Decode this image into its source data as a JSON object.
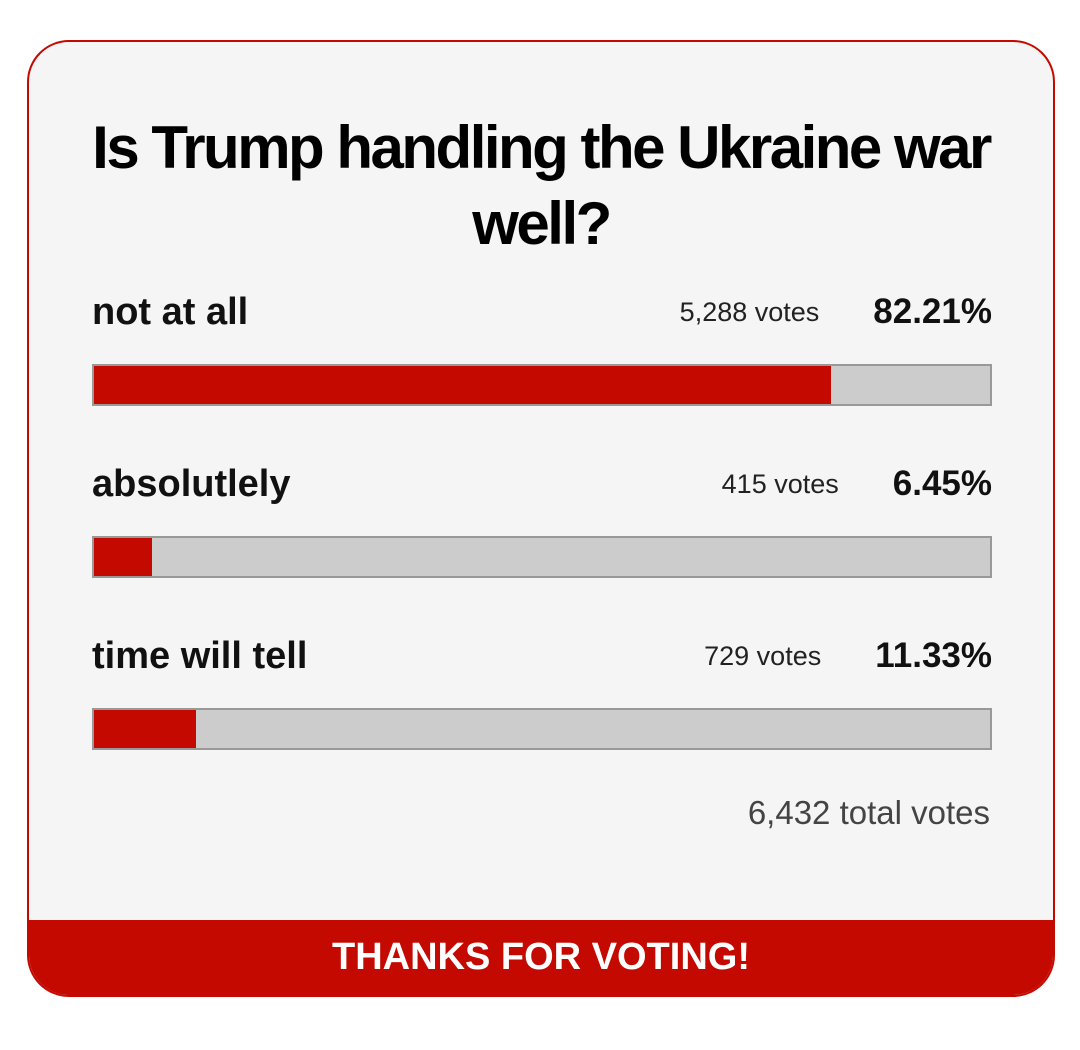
{
  "poll": {
    "title": "Is Trump handling the Ukraine war well?",
    "options": [
      {
        "label": "not at all",
        "votes_label": "5,288 votes",
        "percent": 82.21,
        "percent_label": "82.21%"
      },
      {
        "label": "absolutlely",
        "votes_label": "415 votes",
        "percent": 6.45,
        "percent_label": "6.45%"
      },
      {
        "label": "time will tell",
        "votes_label": "729 votes",
        "percent": 11.33,
        "percent_label": "11.33%"
      }
    ],
    "total_label": "6,432 total votes",
    "footer": "THANKS FOR VOTING!"
  }
}
